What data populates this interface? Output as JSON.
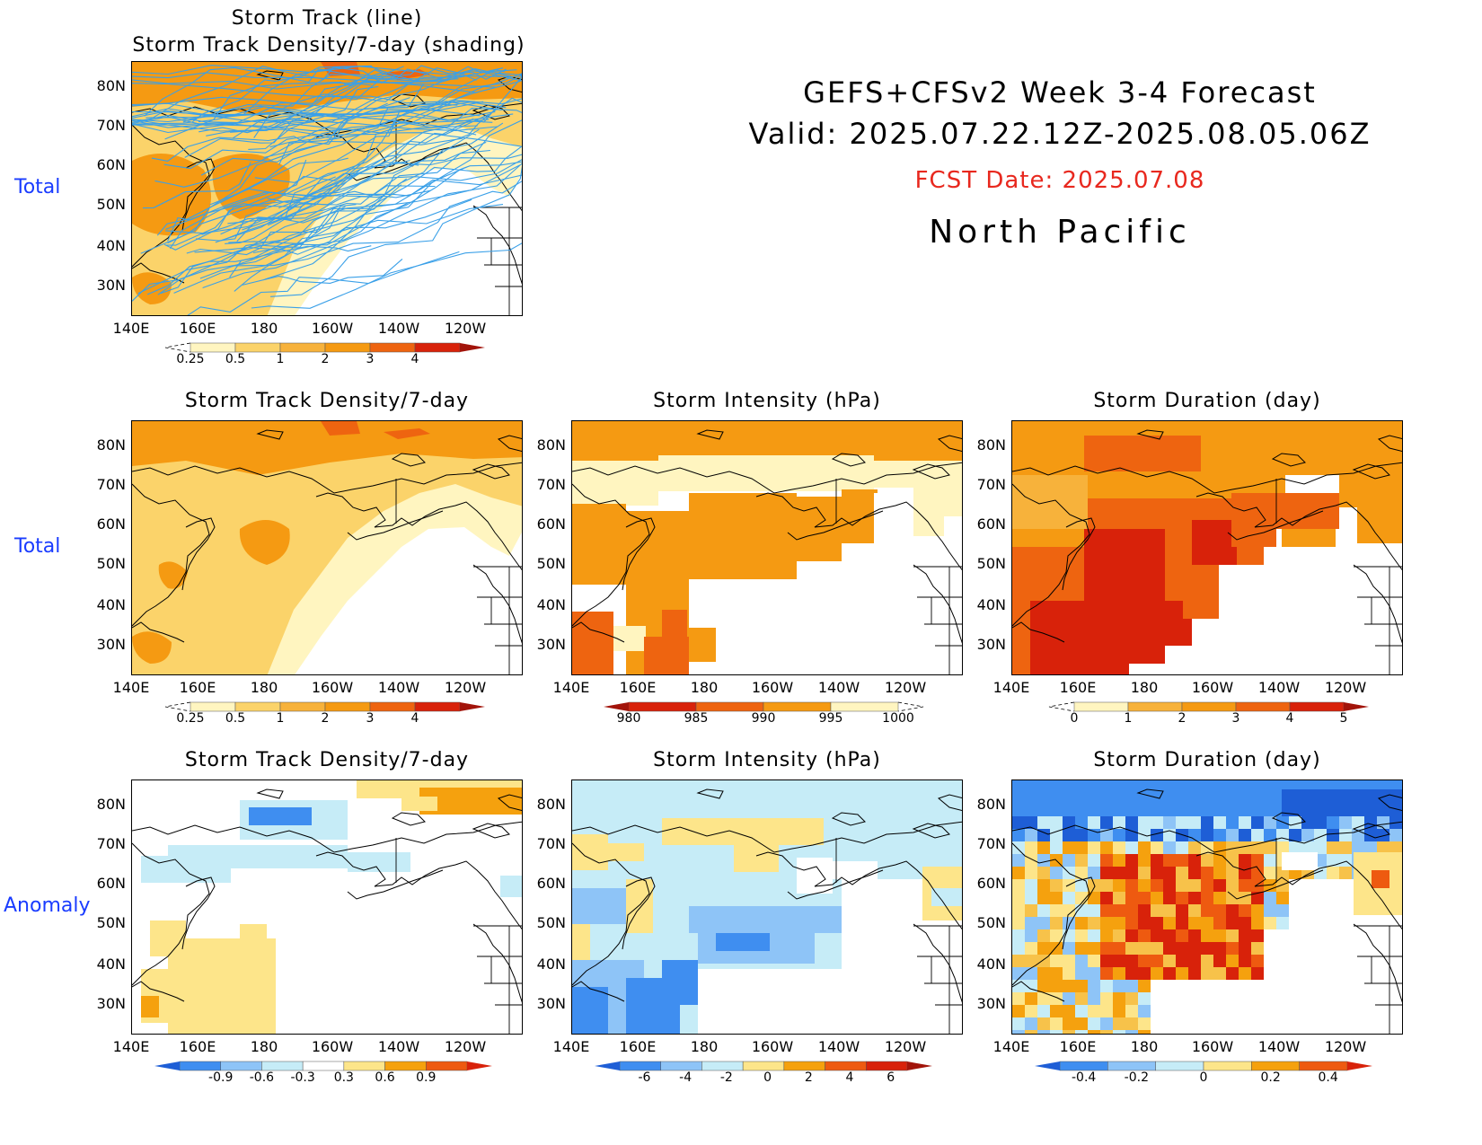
{
  "header": {
    "line1": "GEFS+CFSv2 Week 3-4 Forecast",
    "line2": "Valid: 2025.07.22.12Z-2025.08.05.06Z",
    "fcst": "FCST Date: 2025.07.08",
    "region": "North Pacific"
  },
  "row_labels": [
    "Total",
    "Total",
    "Anomaly"
  ],
  "axis": {
    "lat_labels": [
      "80N",
      "70N",
      "60N",
      "50N",
      "40N",
      "30N"
    ],
    "lon_labels": [
      "140E",
      "160E",
      "180",
      "160W",
      "140W",
      "120W"
    ]
  },
  "panels": [
    {
      "id": "top",
      "title_line1": "Storm Track (line)",
      "title_line2": "Storm Track Density/7-day (shading)"
    },
    {
      "id": "density",
      "title": "Storm Track Density/7-day"
    },
    {
      "id": "intensity",
      "title": "Storm Intensity (hPa)"
    },
    {
      "id": "duration",
      "title": "Storm Duration (day)"
    },
    {
      "id": "density_anom",
      "title": "Storm Track Density/7-day"
    },
    {
      "id": "intensity_anom",
      "title": "Storm Intensity (hPa)"
    },
    {
      "id": "duration_anom",
      "title": "Storm Duration (day)"
    }
  ],
  "colorbars": {
    "density": {
      "labels": [
        "0.25",
        "0.5",
        "1",
        "2",
        "3",
        "4"
      ],
      "colors": [
        "#fff5c0",
        "#fbd36a",
        "#f7b23b",
        "#f59a12",
        "#ee6410",
        "#d8220a",
        "#a2140a"
      ]
    },
    "intensity": {
      "labels": [
        "980",
        "985",
        "990",
        "995",
        "1000"
      ],
      "colors": [
        "#a2140a",
        "#d8220a",
        "#ee6410",
        "#f59a12",
        "#fff5c0"
      ]
    },
    "duration": {
      "labels": [
        "0",
        "1",
        "2",
        "3",
        "4",
        "5"
      ],
      "colors": [
        "#fff5c0",
        "#f7b23b",
        "#f59a12",
        "#ee6410",
        "#d8220a",
        "#a2140a"
      ]
    },
    "anom_density": {
      "labels": [
        "-0.9",
        "-0.6",
        "-0.3",
        "0.3",
        "0.6",
        "0.9"
      ]
    },
    "anom_intensity": {
      "labels": [
        "-6",
        "-4",
        "-2",
        "0",
        "2",
        "4",
        "6"
      ]
    },
    "anom_duration": {
      "labels": [
        "-0.4",
        "-0.2",
        "0",
        "0.2",
        "0.4"
      ]
    },
    "anom_colors": [
      "#1e5ed6",
      "#3f8ef0",
      "#8ec4f7",
      "#c6ecf7",
      "#fde58a",
      "#f7c24a",
      "#f5a10e",
      "#ee5a10",
      "#d8220a"
    ]
  }
}
